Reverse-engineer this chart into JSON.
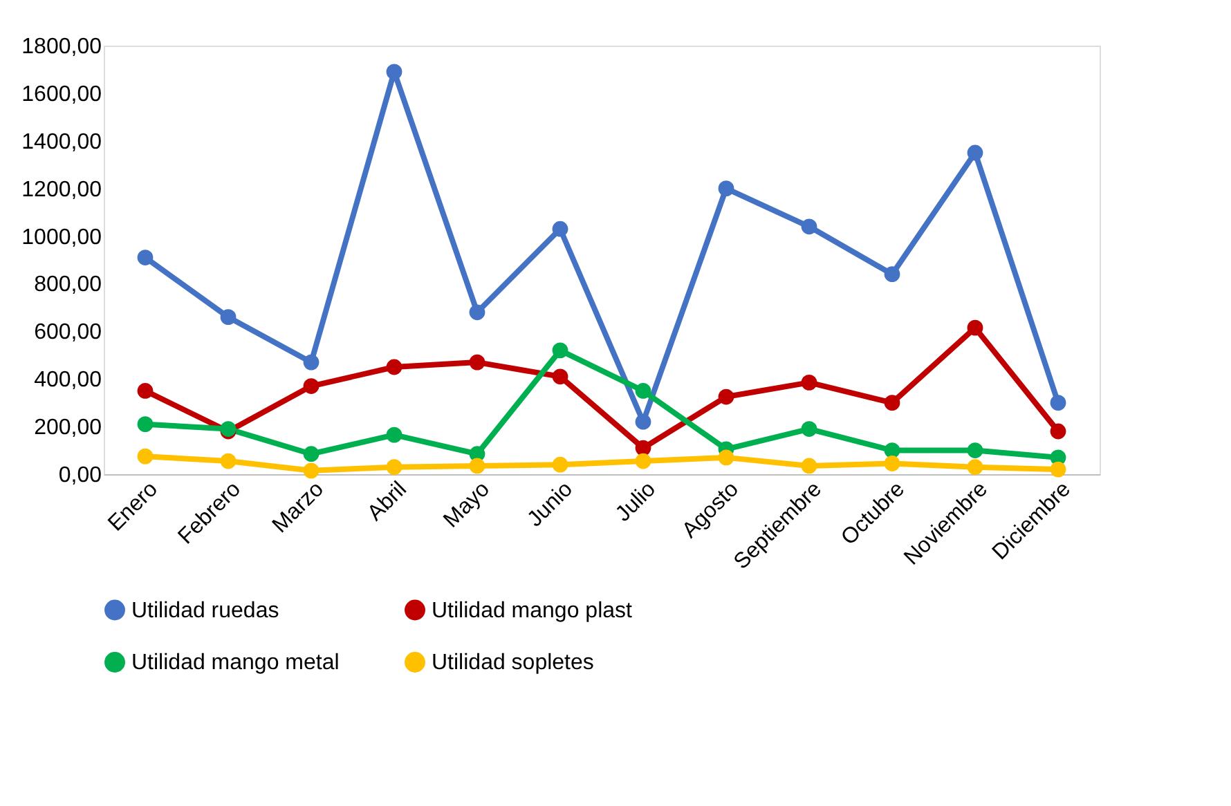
{
  "chart_data": {
    "type": "line",
    "categories": [
      "Enero",
      "Febrero",
      "Marzo",
      "Abril",
      "Mayo",
      "Junio",
      "Julio",
      "Agosto",
      "Septiembre",
      "Octubre",
      "Noviembre",
      "Diciembre"
    ],
    "series": [
      {
        "name": "Utilidad ruedas",
        "color": "#4472c4",
        "values": [
          910,
          660,
          470,
          1690,
          680,
          1030,
          220,
          1200,
          1040,
          840,
          1350,
          300
        ]
      },
      {
        "name": "Utilidad mango plast",
        "color": "#c00000",
        "values": [
          350,
          180,
          370,
          450,
          470,
          410,
          110,
          325,
          385,
          300,
          615,
          180
        ]
      },
      {
        "name": "Utilidad mango metal",
        "color": "#00b050",
        "values": [
          210,
          190,
          85,
          165,
          85,
          520,
          350,
          105,
          190,
          100,
          100,
          70
        ]
      },
      {
        "name": "Utilidad sopletes",
        "color": "#ffc000",
        "values": [
          75,
          55,
          15,
          30,
          35,
          40,
          55,
          70,
          35,
          45,
          30,
          20
        ]
      }
    ],
    "ylim": [
      0,
      1800
    ],
    "yticks": [
      {
        "value": 0,
        "label": "0,00"
      },
      {
        "value": 200,
        "label": "200,00"
      },
      {
        "value": 400,
        "label": "400,00"
      },
      {
        "value": 600,
        "label": "600,00"
      },
      {
        "value": 800,
        "label": "800,00"
      },
      {
        "value": 1000,
        "label": "1000,00"
      },
      {
        "value": 1200,
        "label": "1200,00"
      },
      {
        "value": 1400,
        "label": "1400,00"
      },
      {
        "value": 1600,
        "label": "1600,00"
      },
      {
        "value": 1800,
        "label": "1800,00"
      }
    ],
    "grid": false,
    "legend": "bottom",
    "marker": "circle",
    "line_style": "solid"
  }
}
